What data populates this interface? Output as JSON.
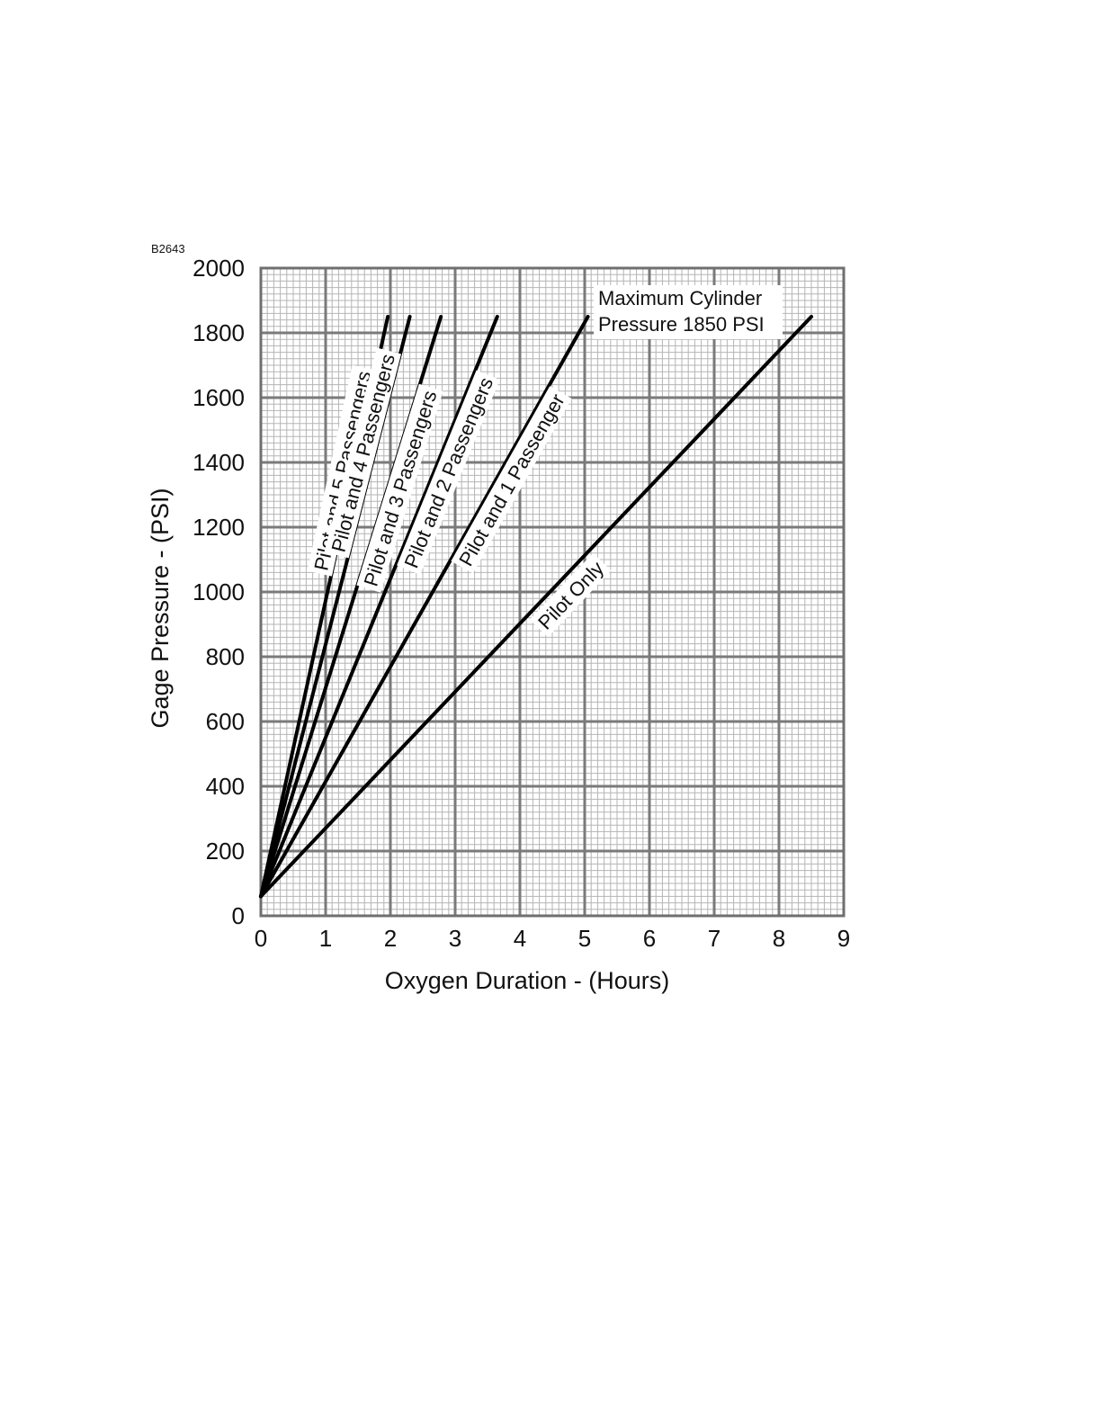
{
  "figure_id": "B2643",
  "chart_data": {
    "type": "line",
    "xlabel": "Oxygen Duration - (Hours)",
    "ylabel": "Gage Pressure - (PSI)",
    "xlim": [
      0,
      9
    ],
    "ylim": [
      0,
      2000
    ],
    "xticks": [
      0,
      1,
      2,
      3,
      4,
      5,
      6,
      7,
      8,
      9
    ],
    "yticks": [
      0,
      200,
      400,
      600,
      800,
      1000,
      1200,
      1400,
      1600,
      1800,
      2000
    ],
    "grid": true,
    "series": [
      {
        "name": "Pilot and 5 Passengers",
        "x": [
          0,
          1.96
        ],
        "y": [
          60,
          1850
        ]
      },
      {
        "name": "Pilot and 4 Passengers",
        "x": [
          0,
          2.3
        ],
        "y": [
          60,
          1850
        ]
      },
      {
        "name": "Pilot and 3 Passengers",
        "x": [
          0,
          2.78
        ],
        "y": [
          60,
          1850
        ]
      },
      {
        "name": "Pilot and 2 Passengers",
        "x": [
          0,
          3.65
        ],
        "y": [
          60,
          1850
        ]
      },
      {
        "name": "Pilot and 1 Passenger",
        "x": [
          0,
          5.05
        ],
        "y": [
          60,
          1850
        ]
      },
      {
        "name": "Pilot Only",
        "x": [
          0,
          8.5
        ],
        "y": [
          60,
          1850
        ]
      }
    ],
    "annotations": [
      {
        "text_line1": "Maximum Cylinder",
        "text_line2": "Pressure 1850 PSI"
      }
    ]
  }
}
